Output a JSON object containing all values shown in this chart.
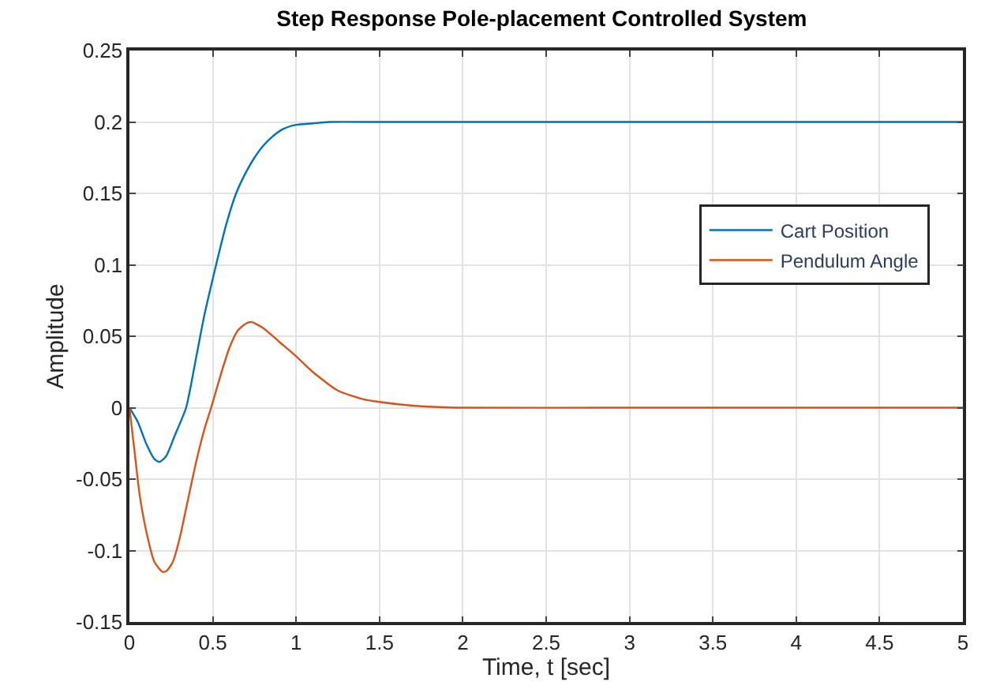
{
  "chart_data": {
    "type": "line",
    "title": "Step Response Pole-placement Controlled System",
    "xlabel": "Time, t [sec]",
    "ylabel": "Amplitude",
    "series": [
      {
        "name": "Cart Position",
        "color": "#0072bd",
        "x": [
          0,
          0.05,
          0.1,
          0.15,
          0.18,
          0.22,
          0.27,
          0.34,
          0.4,
          0.45,
          0.52,
          0.58,
          0.64,
          0.7,
          0.75,
          0.8,
          0.86,
          0.92,
          1.0,
          1.1,
          1.2,
          1.5,
          2,
          3,
          4,
          5
        ],
        "values": [
          0,
          -0.01,
          -0.025,
          -0.036,
          -0.038,
          -0.034,
          -0.02,
          0,
          0.035,
          0.065,
          0.1,
          0.128,
          0.15,
          0.165,
          0.175,
          0.183,
          0.19,
          0.195,
          0.198,
          0.199,
          0.2,
          0.2,
          0.2,
          0.2,
          0.2,
          0.2
        ]
      },
      {
        "name": "Pendulum Angle",
        "color": "#d95319",
        "x": [
          0,
          0.03,
          0.06,
          0.1,
          0.15,
          0.2,
          0.225,
          0.26,
          0.3,
          0.35,
          0.4,
          0.45,
          0.49,
          0.55,
          0.6,
          0.65,
          0.7,
          0.73,
          0.8,
          0.9,
          1.0,
          1.1,
          1.25,
          1.4,
          1.5,
          1.75,
          2,
          3,
          4,
          5
        ],
        "values": [
          0,
          -0.03,
          -0.06,
          -0.086,
          -0.108,
          -0.115,
          -0.114,
          -0.108,
          -0.092,
          -0.065,
          -0.038,
          -0.015,
          0,
          0.024,
          0.042,
          0.054,
          0.059,
          0.06,
          0.056,
          0.046,
          0.036,
          0.025,
          0.012,
          0.006,
          0.004,
          0.001,
          0,
          0,
          0,
          0
        ]
      }
    ],
    "xlim": [
      0,
      5
    ],
    "xticks": [
      0,
      0.5,
      1,
      1.5,
      2,
      2.5,
      3,
      3.5,
      4,
      4.5,
      5
    ],
    "ylim": [
      -0.15,
      0.25
    ],
    "yticks": [
      -0.15,
      -0.1,
      -0.05,
      0,
      0.05,
      0.1,
      0.15,
      0.2,
      0.25
    ],
    "grid": true,
    "legend": "top right",
    "marker": "none",
    "line_style": "solid"
  }
}
